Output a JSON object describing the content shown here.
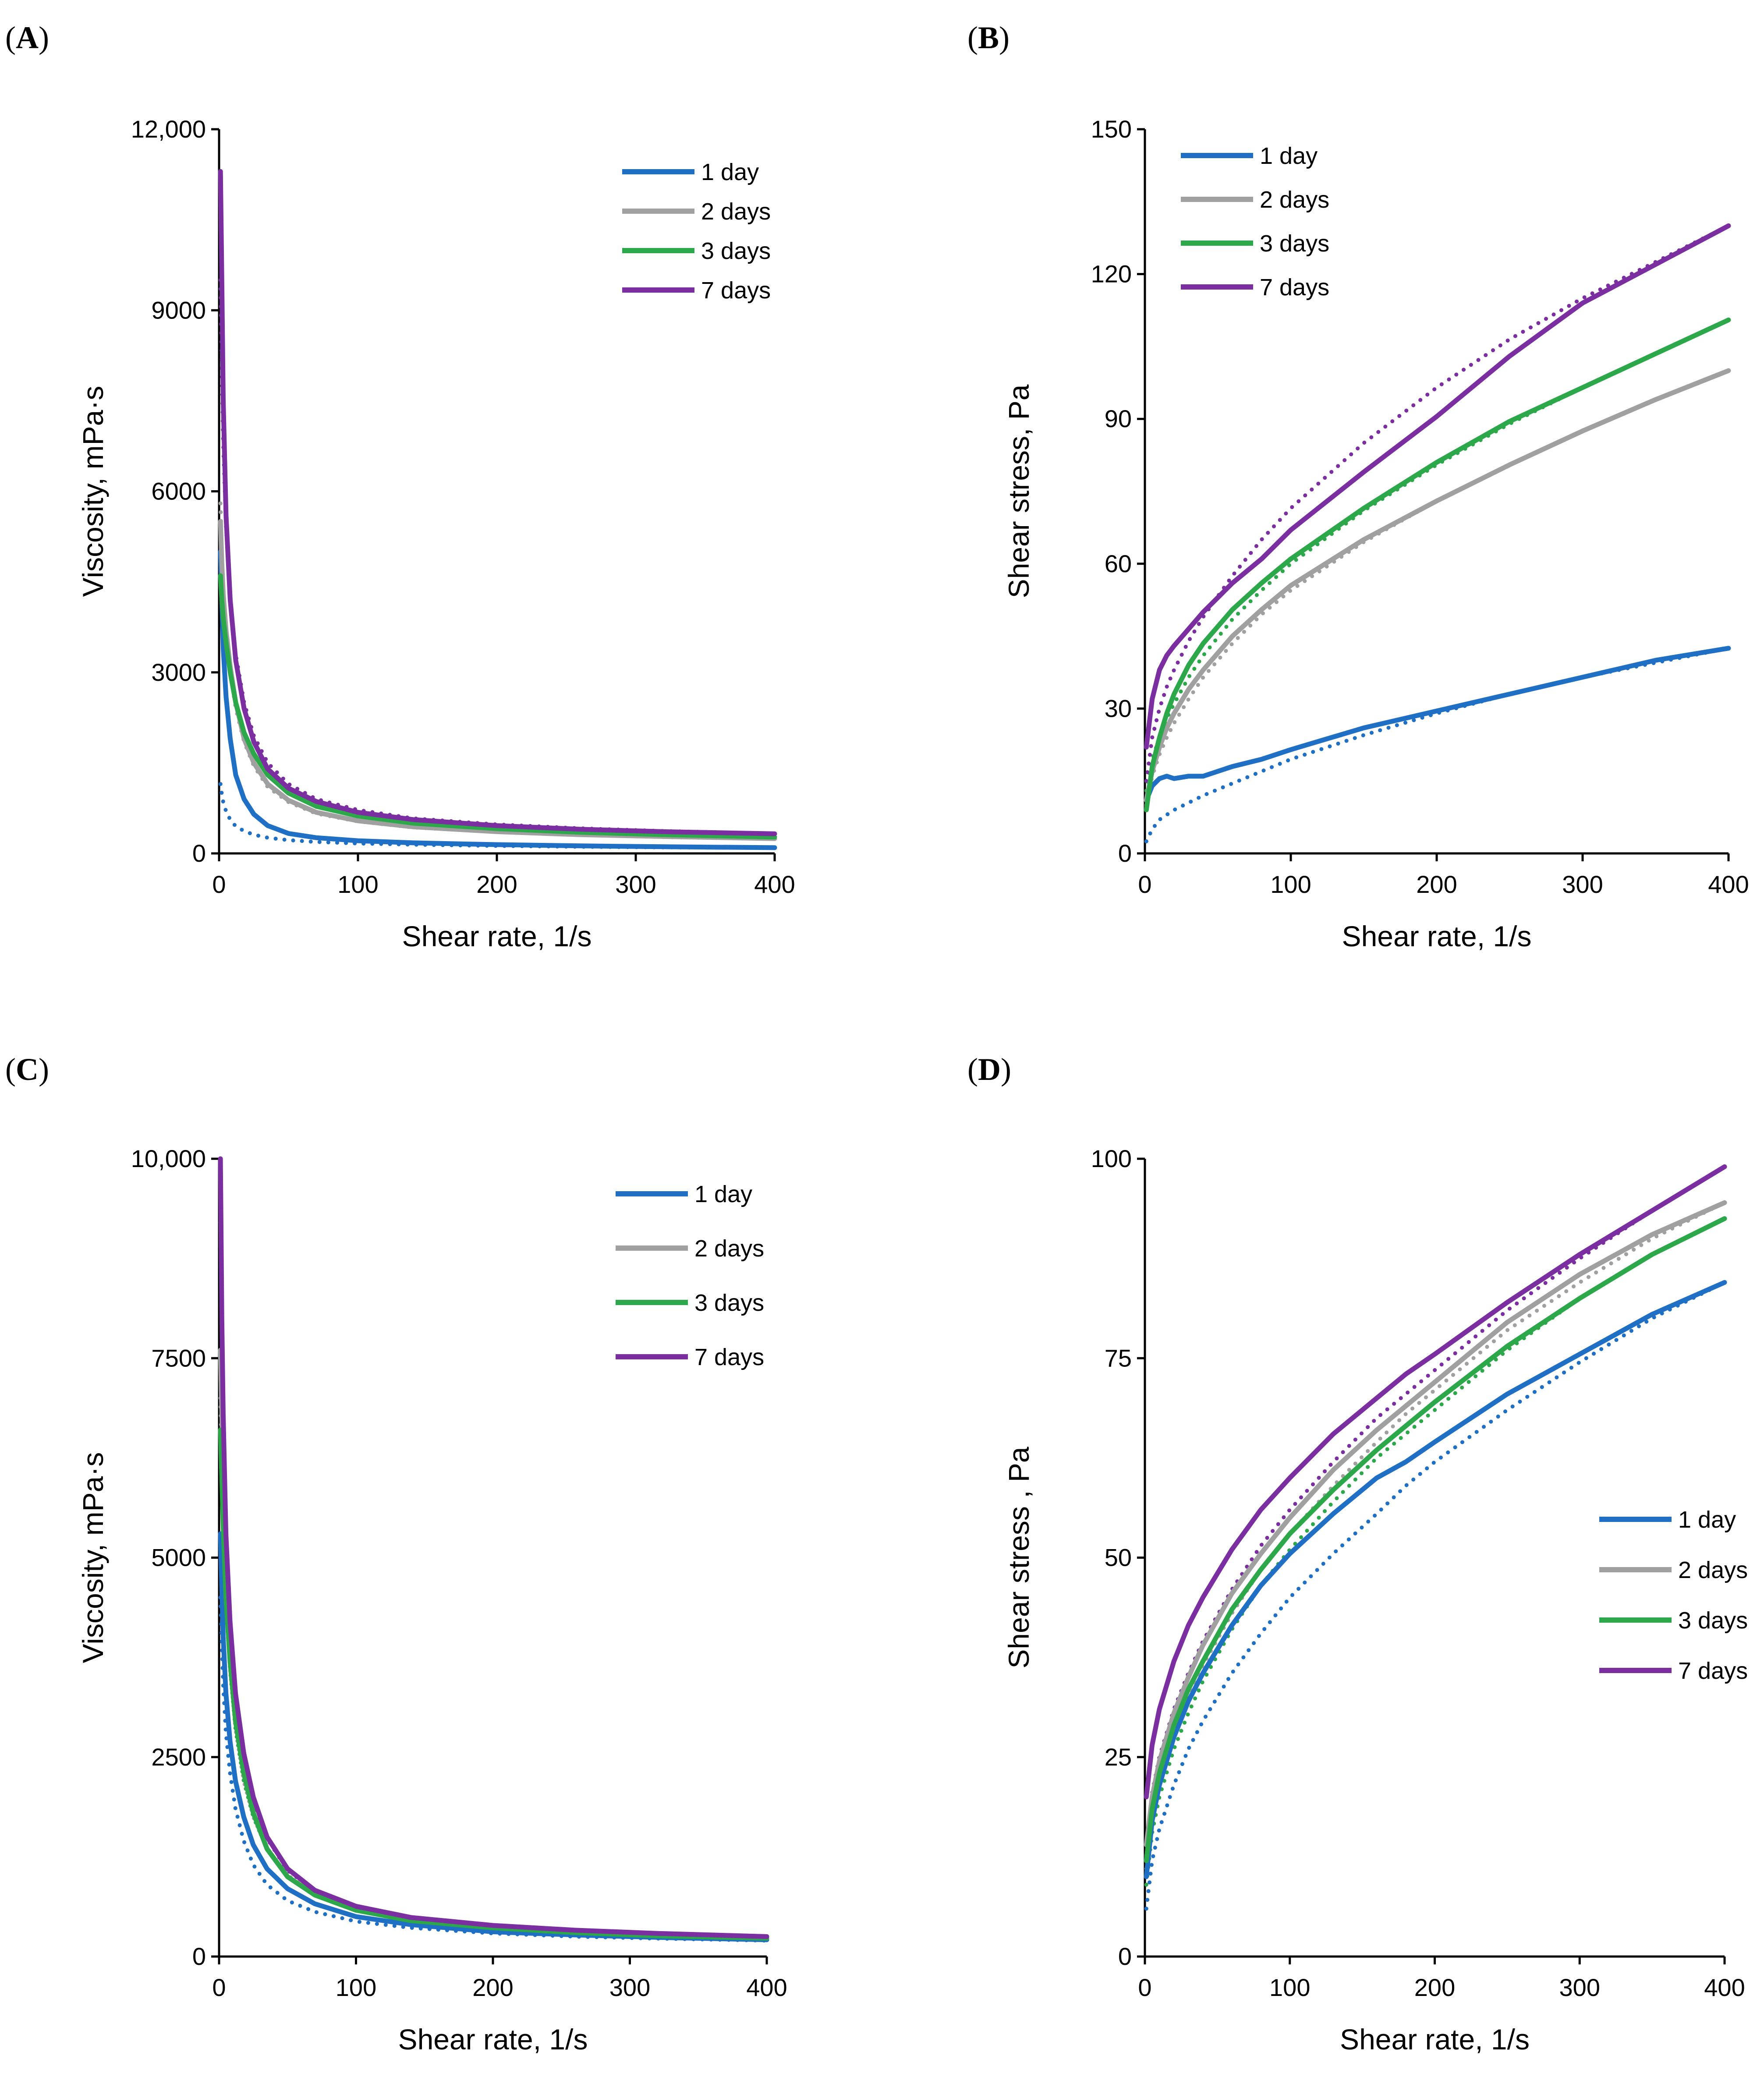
{
  "chart_data": [
    {
      "panel": "A",
      "type": "line",
      "title": "",
      "xlabel": "Shear rate, 1/s",
      "ylabel": "Viscosity, mPa·s",
      "xlim": [
        0,
        400
      ],
      "ylim": [
        0,
        12000
      ],
      "xticks": [
        0,
        100,
        200,
        300,
        400
      ],
      "yticks": [
        0,
        3000,
        6000,
        9000,
        12000
      ],
      "xtick_labels": [
        "0",
        "100",
        "200",
        "300",
        "400"
      ],
      "ytick_labels": [
        "0",
        "3000",
        "6000",
        "9000",
        "12,000"
      ],
      "legend_position": "top-right",
      "x": [
        1,
        2,
        3,
        5,
        8,
        12,
        18,
        25,
        35,
        50,
        70,
        100,
        140,
        200,
        260,
        320,
        400
      ],
      "series": [
        {
          "name": "1 day",
          "color": "#1f6fc5",
          "values": [
            5000,
            4200,
            3400,
            2600,
            1900,
            1300,
            900,
            650,
            460,
            330,
            260,
            210,
            175,
            145,
            125,
            110,
            95
          ],
          "fit": [
            1150,
            980,
            850,
            700,
            560,
            450,
            370,
            310,
            260,
            220,
            190,
            165,
            145,
            125,
            110,
            100,
            90
          ]
        },
        {
          "name": "2 days",
          "color": "#a0a0a0",
          "values": [
            5500,
            4800,
            4300,
            3700,
            3100,
            2500,
            1900,
            1500,
            1150,
            880,
            680,
            540,
            440,
            360,
            310,
            280,
            245
          ],
          "fit": [
            5800,
            5000,
            4400,
            3700,
            3000,
            2400,
            1850,
            1450,
            1100,
            850,
            660,
            530,
            430,
            355,
            305,
            270,
            240
          ]
        },
        {
          "name": "3 days",
          "color": "#2ca84a",
          "values": [
            4600,
            4200,
            3900,
            3500,
            3000,
            2500,
            2000,
            1650,
            1300,
            1000,
            780,
            620,
            500,
            410,
            350,
            310,
            270
          ],
          "fit": [
            4700,
            4300,
            3950,
            3500,
            3000,
            2500,
            2000,
            1650,
            1300,
            1000,
            780,
            620,
            500,
            410,
            350,
            310,
            275
          ]
        },
        {
          "name": "7 days",
          "color": "#7b2ea0",
          "values": [
            11300,
            9500,
            7500,
            5600,
            4200,
            3200,
            2400,
            1850,
            1400,
            1080,
            860,
            680,
            560,
            460,
            400,
            360,
            325
          ],
          "fit": [
            9500,
            8000,
            6800,
            5400,
            4200,
            3300,
            2500,
            1950,
            1500,
            1150,
            900,
            720,
            580,
            480,
            415,
            370,
            330
          ]
        }
      ]
    },
    {
      "panel": "B",
      "type": "line",
      "title": "",
      "xlabel": "Shear rate, 1/s",
      "ylabel": "Shear stress, Pa",
      "xlim": [
        0,
        400
      ],
      "ylim": [
        0,
        150
      ],
      "xticks": [
        0,
        100,
        200,
        300,
        400
      ],
      "yticks": [
        0,
        30,
        60,
        90,
        120,
        150
      ],
      "xtick_labels": [
        "0",
        "100",
        "200",
        "300",
        "400"
      ],
      "ytick_labels": [
        "0",
        "30",
        "60",
        "90",
        "120",
        "150"
      ],
      "legend_position": "top-left",
      "x": [
        1,
        5,
        10,
        15,
        20,
        30,
        40,
        60,
        80,
        100,
        150,
        200,
        250,
        300,
        350,
        400
      ],
      "series": [
        {
          "name": "1 day",
          "color": "#1f6fc5",
          "values": [
            11,
            14,
            15.5,
            16,
            15.5,
            16,
            16,
            18,
            19.5,
            21.5,
            26,
            29.5,
            33,
            36.5,
            40,
            42.5
          ],
          "fit": [
            2.5,
            5,
            7,
            8,
            9,
            10.5,
            12,
            14.5,
            17,
            19.5,
            24.5,
            29,
            33,
            36.5,
            39.5,
            42.5
          ]
        },
        {
          "name": "2 days",
          "color": "#a0a0a0",
          "values": [
            11,
            17,
            22,
            26,
            29,
            34,
            38,
            45,
            50.5,
            55.5,
            65,
            73,
            80.5,
            87.5,
            94,
            100
          ],
          "fit": [
            10,
            16,
            20.5,
            24,
            27,
            32,
            36.5,
            43.5,
            49.5,
            54.5,
            64.5,
            73,
            80.5,
            87.5,
            94,
            100
          ]
        },
        {
          "name": "3 days",
          "color": "#2ca84a",
          "values": [
            9,
            18,
            24,
            29,
            33,
            39,
            43.5,
            50.5,
            56,
            61,
            71.5,
            81,
            89.5,
            96.5,
            103.5,
            110.5
          ],
          "fit": [
            13,
            19.5,
            24,
            28,
            31,
            36.5,
            41,
            48.5,
            54.5,
            60,
            71,
            80.5,
            89,
            96.5,
            103.5,
            110.5
          ]
        },
        {
          "name": "7 days",
          "color": "#7b2ea0",
          "values": [
            22,
            32,
            38,
            41,
            43,
            46.5,
            50,
            56,
            61,
            67,
            79,
            90.5,
            103,
            114,
            122,
            130
          ],
          "fit": [
            15,
            24,
            30,
            34.5,
            38,
            44,
            49,
            57.5,
            65,
            71.5,
            85,
            96.5,
            106.5,
            115,
            122.5,
            130
          ]
        }
      ]
    },
    {
      "panel": "C",
      "type": "line",
      "title": "",
      "xlabel": "Shear rate, 1/s",
      "ylabel": "Viscosity, mPa·s",
      "xlim": [
        0,
        400
      ],
      "ylim": [
        0,
        10000
      ],
      "xticks": [
        0,
        100,
        200,
        300,
        400
      ],
      "yticks": [
        0,
        2500,
        5000,
        7500,
        10000
      ],
      "xtick_labels": [
        "0",
        "100",
        "200",
        "300",
        "400"
      ],
      "ytick_labels": [
        "0",
        "2500",
        "5000",
        "7500",
        "10,000"
      ],
      "legend_position": "top-right",
      "x": [
        1,
        2,
        3,
        5,
        8,
        12,
        18,
        25,
        35,
        50,
        70,
        100,
        140,
        200,
        260,
        320,
        400
      ],
      "series": [
        {
          "name": "1 day",
          "color": "#1f6fc5",
          "values": [
            5300,
            4600,
            4000,
            3300,
            2700,
            2200,
            1750,
            1400,
            1100,
            850,
            660,
            500,
            400,
            310,
            270,
            240,
            210
          ],
          "fit": [
            4500,
            3900,
            3400,
            2800,
            2300,
            1850,
            1450,
            1150,
            900,
            700,
            560,
            440,
            360,
            290,
            250,
            225,
            200
          ]
        },
        {
          "name": "2 days",
          "color": "#a0a0a0",
          "values": [
            7600,
            6800,
            6000,
            4900,
            3800,
            3000,
            2300,
            1800,
            1350,
            1000,
            780,
            590,
            460,
            370,
            320,
            285,
            250
          ],
          "fit": [
            7000,
            6200,
            5500,
            4500,
            3600,
            2850,
            2200,
            1750,
            1350,
            1020,
            790,
            600,
            470,
            375,
            325,
            290,
            255
          ]
        },
        {
          "name": "3 days",
          "color": "#2ca84a",
          "values": [
            6600,
            6000,
            5400,
            4500,
            3700,
            2950,
            2300,
            1800,
            1350,
            1000,
            770,
            580,
            450,
            360,
            300,
            260,
            230
          ],
          "fit": [
            6500,
            5800,
            5200,
            4400,
            3600,
            2850,
            2200,
            1750,
            1350,
            1000,
            780,
            590,
            460,
            365,
            310,
            270,
            235
          ]
        },
        {
          "name": "7 days",
          "color": "#7b2ea0",
          "values": [
            10000,
            8000,
            6800,
            5300,
            4200,
            3300,
            2550,
            2000,
            1500,
            1100,
            830,
            630,
            490,
            390,
            330,
            290,
            250
          ],
          "fit": [
            9200,
            7700,
            6600,
            5200,
            4100,
            3250,
            2500,
            1950,
            1480,
            1080,
            820,
            620,
            480,
            385,
            330,
            290,
            250
          ]
        }
      ]
    },
    {
      "panel": "D",
      "type": "line",
      "title": "",
      "xlabel": "Shear rate, 1/s",
      "ylabel": "Shear stress , Pa",
      "xlim": [
        0,
        400
      ],
      "ylim": [
        0,
        100
      ],
      "xticks": [
        0,
        100,
        200,
        300,
        400
      ],
      "yticks": [
        0,
        25,
        50,
        75,
        100
      ],
      "xtick_labels": [
        "0",
        "100",
        "200",
        "300",
        "400"
      ],
      "ytick_labels": [
        "0",
        "25",
        "50",
        "75",
        "100"
      ],
      "legend_position": "right",
      "x": [
        1,
        5,
        10,
        20,
        30,
        40,
        60,
        80,
        100,
        130,
        160,
        180,
        200,
        250,
        300,
        350,
        400
      ],
      "series": [
        {
          "name": "1 day",
          "color": "#1f6fc5",
          "values": [
            10,
            17,
            21.5,
            27.5,
            32,
            35.5,
            41.5,
            46.5,
            50.5,
            55.5,
            60,
            62,
            64.5,
            70.5,
            75.5,
            80.5,
            84.5
          ],
          "fit": [
            6,
            12,
            16,
            21.5,
            26,
            29.5,
            35.5,
            40.5,
            45,
            50.5,
            55.5,
            59,
            62,
            68.5,
            74.5,
            80,
            84.5
          ]
        },
        {
          "name": "2 days",
          "color": "#a0a0a0",
          "values": [
            14,
            20,
            24.5,
            30.5,
            35,
            39,
            45.5,
            50.5,
            55,
            61,
            66,
            69,
            72,
            79.5,
            85.5,
            90.5,
            94.5
          ],
          "fit": [
            11,
            17.5,
            22,
            28,
            32.5,
            36.5,
            43,
            48.5,
            53,
            59,
            64.5,
            68,
            71,
            78.5,
            84.5,
            90,
            94.5
          ]
        },
        {
          "name": "3 days",
          "color": "#2ca84a",
          "values": [
            12,
            18.5,
            23,
            29,
            33.5,
            37,
            43.5,
            48.5,
            53,
            58.5,
            63.5,
            66.5,
            69.5,
            76.5,
            82.5,
            88,
            92.5
          ],
          "fit": [
            9,
            15.5,
            20,
            26,
            30.5,
            34.5,
            41,
            46.5,
            51,
            57,
            62.5,
            65.5,
            68.5,
            76,
            82.5,
            88,
            92.5
          ]
        },
        {
          "name": "7 days",
          "color": "#7b2ea0",
          "values": [
            20,
            26.5,
            31,
            37,
            41.5,
            45,
            51,
            56,
            60,
            65.5,
            70,
            73,
            75.5,
            82,
            88,
            93.5,
            99
          ],
          "fit": [
            14,
            20.5,
            25,
            31,
            35.5,
            39.5,
            46,
            51.5,
            56,
            62,
            67.5,
            70.5,
            73.5,
            81,
            87.5,
            93.5,
            99
          ]
        }
      ]
    }
  ]
}
